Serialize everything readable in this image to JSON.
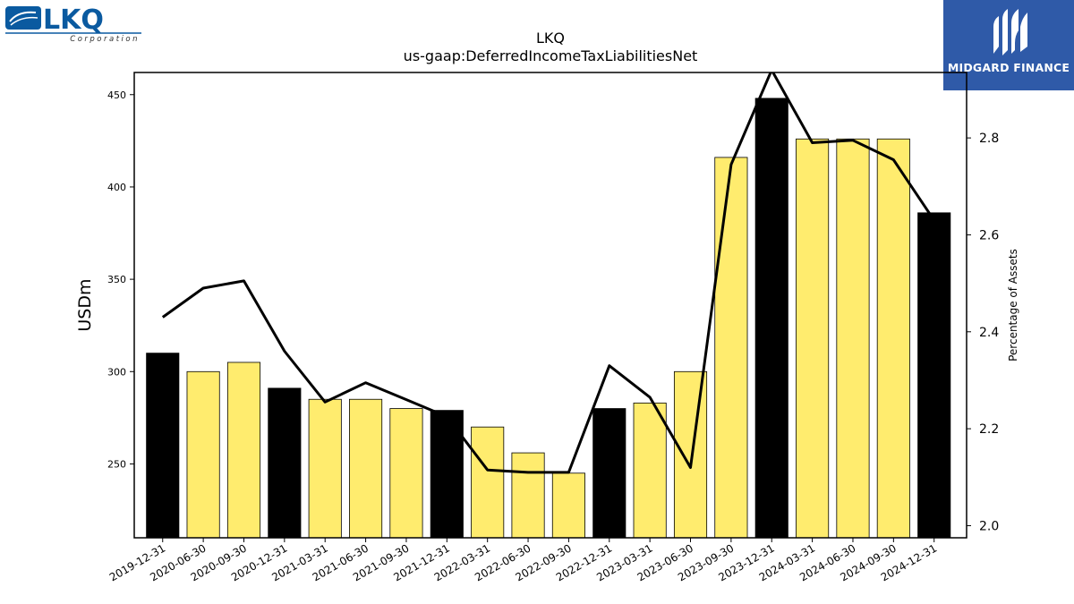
{
  "logos": {
    "left": {
      "text": "LKQ",
      "subtext": "Corporation",
      "color": "#0a5aa0"
    },
    "right": {
      "text": "MIDGARD FINANCE",
      "background": "#2f5aa8"
    }
  },
  "chart_data": {
    "type": "bar",
    "title": "LKQ",
    "subtitle": "us-gaap:DeferredIncomeTaxLiabilitiesNet",
    "ylabel": "USDm",
    "y2label": "Percentage of Assets",
    "ylim": [
      210,
      462
    ],
    "y2lim": [
      1.975,
      2.935
    ],
    "yticks": [
      250,
      300,
      350,
      400,
      450
    ],
    "y2ticks": [
      2.0,
      2.2,
      2.4,
      2.6,
      2.8
    ],
    "categories": [
      "2019-12-31",
      "2020-06-30",
      "2020-09-30",
      "2020-12-31",
      "2021-03-31",
      "2021-06-30",
      "2021-09-30",
      "2021-12-31",
      "2022-03-31",
      "2022-06-30",
      "2022-09-30",
      "2022-12-31",
      "2023-03-31",
      "2023-06-30",
      "2023-09-30",
      "2023-12-31",
      "2024-03-31",
      "2024-06-30",
      "2024-09-30",
      "2024-12-31"
    ],
    "series": [
      {
        "type": "bar",
        "axis": "left",
        "values": [
          310,
          300,
          305,
          291,
          285,
          285,
          280,
          279,
          270,
          256,
          245,
          280,
          283,
          300,
          416,
          448,
          426,
          426,
          426,
          386
        ],
        "colors": [
          "#000000",
          "#ffec6e",
          "#ffec6e",
          "#000000",
          "#ffec6e",
          "#ffec6e",
          "#ffec6e",
          "#000000",
          "#ffec6e",
          "#ffec6e",
          "#ffec6e",
          "#000000",
          "#ffec6e",
          "#ffec6e",
          "#ffec6e",
          "#000000",
          "#ffec6e",
          "#ffec6e",
          "#ffec6e",
          "#000000"
        ]
      },
      {
        "type": "line",
        "axis": "right",
        "color": "#000000",
        "values": [
          2.43,
          2.49,
          2.505,
          2.36,
          2.255,
          2.295,
          2.26,
          2.225,
          2.115,
          2.11,
          2.11,
          2.33,
          2.265,
          2.12,
          2.745,
          2.94,
          2.79,
          2.795,
          2.755,
          2.63
        ]
      }
    ],
    "grid": false,
    "legend": "none"
  }
}
